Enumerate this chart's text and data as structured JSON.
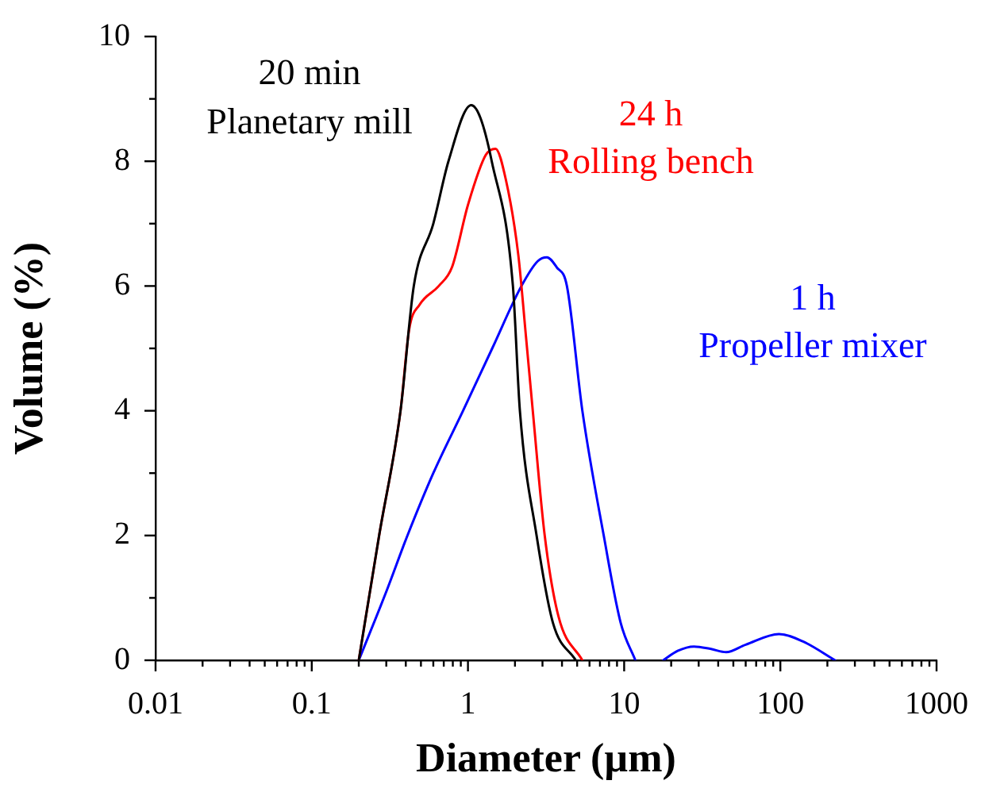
{
  "chart_data": {
    "type": "line",
    "xlabel": "Diameter (µm)",
    "ylabel": "Volume (%)",
    "log": "x",
    "xlim": [
      0.01,
      1000
    ],
    "ylim": [
      0,
      10
    ],
    "xticks": [
      0.01,
      {
        "value": 0.02,
        "label": null
      },
      {
        "value": 0.03,
        "label": null
      },
      {
        "value": 0.04,
        "label": null
      },
      {
        "value": 0.05,
        "label": null
      },
      {
        "value": 0.06,
        "label": null
      },
      {
        "value": 0.07,
        "label": null
      },
      {
        "value": 0.08,
        "label": null
      },
      {
        "value": 0.09,
        "label": null
      },
      0.1,
      {
        "value": 0.2,
        "label": null
      },
      {
        "value": 0.3,
        "label": null
      },
      {
        "value": 0.4,
        "label": null
      },
      {
        "value": 0.5,
        "label": null
      },
      {
        "value": 0.6,
        "label": null
      },
      {
        "value": 0.7,
        "label": null
      },
      {
        "value": 0.8,
        "label": null
      },
      {
        "value": 0.9,
        "label": null
      },
      1,
      {
        "value": 2,
        "label": null
      },
      {
        "value": 3,
        "label": null
      },
      {
        "value": 4,
        "label": null
      },
      {
        "value": 5,
        "label": null
      },
      {
        "value": 6,
        "label": null
      },
      {
        "value": 7,
        "label": null
      },
      {
        "value": 8,
        "label": null
      },
      {
        "value": 9,
        "label": null
      },
      10,
      {
        "value": 20,
        "label": null
      },
      {
        "value": 30,
        "label": null
      },
      {
        "value": 40,
        "label": null
      },
      {
        "value": 50,
        "label": null
      },
      {
        "value": 60,
        "label": null
      },
      {
        "value": 70,
        "label": null
      },
      {
        "value": 80,
        "label": null
      },
      {
        "value": 90,
        "label": null
      },
      100,
      {
        "value": 200,
        "label": null
      },
      {
        "value": 300,
        "label": null
      },
      {
        "value": 400,
        "label": null
      },
      {
        "value": 500,
        "label": null
      },
      {
        "value": 600,
        "label": null
      },
      {
        "value": 700,
        "label": null
      },
      {
        "value": 800,
        "label": null
      },
      {
        "value": 900,
        "label": null
      },
      1000
    ],
    "yticks": [
      0,
      {
        "value": 1,
        "label": null
      },
      2,
      {
        "value": 3,
        "label": null
      },
      4,
      {
        "value": 5,
        "label": null
      },
      6,
      {
        "value": 7,
        "label": null
      },
      8,
      {
        "value": 9,
        "label": null
      },
      10
    ],
    "grid": false,
    "legend": false,
    "marker": "none",
    "line_style": "solid",
    "series": [
      {
        "name": "20 min\nPlanetary mill",
        "color": "#000000",
        "x": [
          0.2,
          0.27,
          0.37,
          0.45,
          0.6,
          0.75,
          1.05,
          1.2,
          1.42,
          1.94,
          2.15,
          2.75,
          3.5,
          4.9
        ],
        "values": [
          0,
          2,
          4,
          6,
          7,
          8,
          8.9,
          8.7,
          8,
          6,
          4,
          2,
          0.6,
          0
        ]
      },
      {
        "name": "24 h\nRolling bench",
        "color": "#ff0000",
        "x": [
          0.2,
          0.27,
          0.37,
          0.42,
          0.49,
          0.65,
          0.79,
          1.0,
          1.3,
          1.5,
          1.75,
          2.1,
          2.35,
          2.6,
          3.1,
          3.8,
          5.4
        ],
        "values": [
          0,
          2,
          4,
          5.3,
          5.7,
          6.0,
          6.3,
          7.3,
          8.1,
          8.2,
          7.7,
          6.5,
          5.2,
          4,
          2,
          0.7,
          0
        ]
      },
      {
        "name": "1 h\nPropeller mixer",
        "color": "#0000ff",
        "x": [
          0.2,
          0.3,
          0.41,
          0.6,
          0.93,
          1.43,
          2.2,
          2.8,
          3.2,
          3.7,
          4.3,
          5.4,
          7.4,
          9.5,
          11.8,
          14.5,
          17.8,
          22,
          28,
          36,
          45,
          60,
          98,
          140,
          224
        ],
        "values": [
          0,
          1.1,
          2,
          3,
          4,
          5,
          6,
          6.4,
          6.46,
          6.3,
          6,
          4,
          2,
          0.6,
          0,
          null,
          0,
          0.15,
          0.22,
          0.18,
          0.13,
          0.25,
          0.42,
          0.3,
          0
        ]
      }
    ]
  }
}
